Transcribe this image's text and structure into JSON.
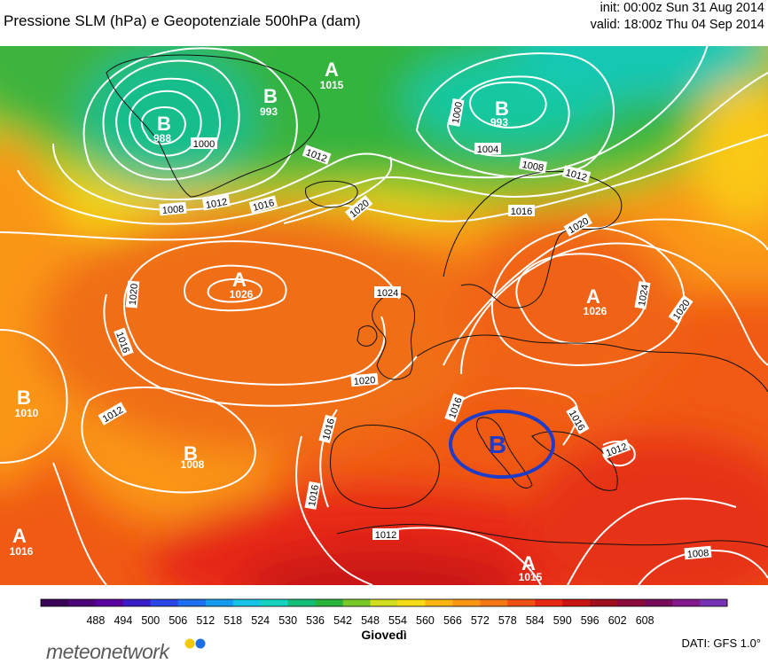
{
  "header": {
    "title": "Pressione SLM (hPa) e Geopotenziale 500hPa (dam)",
    "init": "init: 00:00z Sun 31 Aug 2014",
    "valid": "valid: 18:00z Thu 04 Sep 2014"
  },
  "map": {
    "pressure_centers": [
      {
        "type": "B",
        "value": "988"
      },
      {
        "type": "B",
        "value": "993"
      },
      {
        "type": "A",
        "value": "1015"
      },
      {
        "type": "B",
        "value": "993"
      },
      {
        "type": "A",
        "value": "1026"
      },
      {
        "type": "A",
        "value": "1026"
      },
      {
        "type": "B",
        "value": "1010"
      },
      {
        "type": "B",
        "value": "1008"
      },
      {
        "type": "A",
        "value": "1016"
      },
      {
        "type": "A",
        "value": "1015"
      }
    ],
    "isobar_labels": [
      "1000",
      "1012",
      "1000",
      "1004",
      "1008",
      "1012",
      "1008",
      "1012",
      "1016",
      "1020",
      "1016",
      "1020",
      "1024",
      "1024",
      "1020",
      "1020",
      "1016",
      "1020",
      "1012",
      "1016",
      "1016",
      "1016",
      "1012",
      "1016",
      "1012",
      "1008"
    ],
    "highlight": {
      "label": "B",
      "color": "#1e3cc8"
    }
  },
  "colorbar": {
    "ticks": [
      "488",
      "494",
      "500",
      "506",
      "512",
      "518",
      "524",
      "530",
      "536",
      "542",
      "548",
      "554",
      "560",
      "566",
      "572",
      "578",
      "584",
      "590",
      "596",
      "602",
      "608"
    ],
    "colors": [
      "#3a0055",
      "#4d007a",
      "#5a00a0",
      "#3c1ec8",
      "#2846e6",
      "#1e6ef0",
      "#149bf0",
      "#14c3e6",
      "#14d2be",
      "#14be78",
      "#28b43c",
      "#7ac828",
      "#d2dc1e",
      "#f5dc14",
      "#fab414",
      "#fa9614",
      "#f57814",
      "#f05014",
      "#e62814",
      "#c81414",
      "#a00f1e",
      "#8c0a3c",
      "#780a5a",
      "#82198c",
      "#7832b4"
    ]
  },
  "footer": {
    "day": "Giovedì",
    "source": "DATI: GFS 1.0°",
    "logo": "meteonetwork",
    "logo_dot_colors": [
      "#f5c800",
      "#1e6ee6"
    ]
  }
}
